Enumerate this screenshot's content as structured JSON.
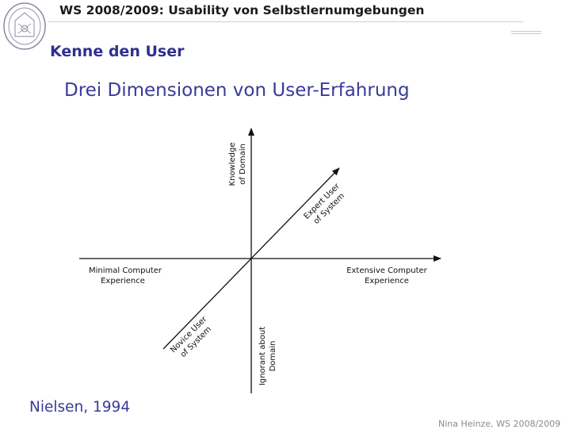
{
  "header": {
    "title": "WS 2008/2009: Usability von Selbstlernumgebungen"
  },
  "slide": {
    "section_title": "Kenne den User",
    "subtitle": "Drei Dimensionen von User-Erfahrung",
    "source": "Nielsen, 1994",
    "footer": "Nina Heinze, WS  2008/2009"
  },
  "diagram": {
    "y_top_label_line1": "Knowledge",
    "y_top_label_line2": "of Domain",
    "y_bottom_label_line1": "Ignorant about",
    "y_bottom_label_line2": "Domain",
    "x_left_label_line1": "Minimal Computer",
    "x_left_label_line2": "Experience",
    "x_right_label_line1": "Extensive Computer",
    "x_right_label_line2": "Experience",
    "diag_top_label_line1": "Expert User",
    "diag_top_label_line2": "of System",
    "diag_bottom_label_line1": "Novice User",
    "diag_bottom_label_line2": "of System"
  },
  "colors": {
    "title_blue": "#2f2f8f",
    "axis": "#111111"
  }
}
